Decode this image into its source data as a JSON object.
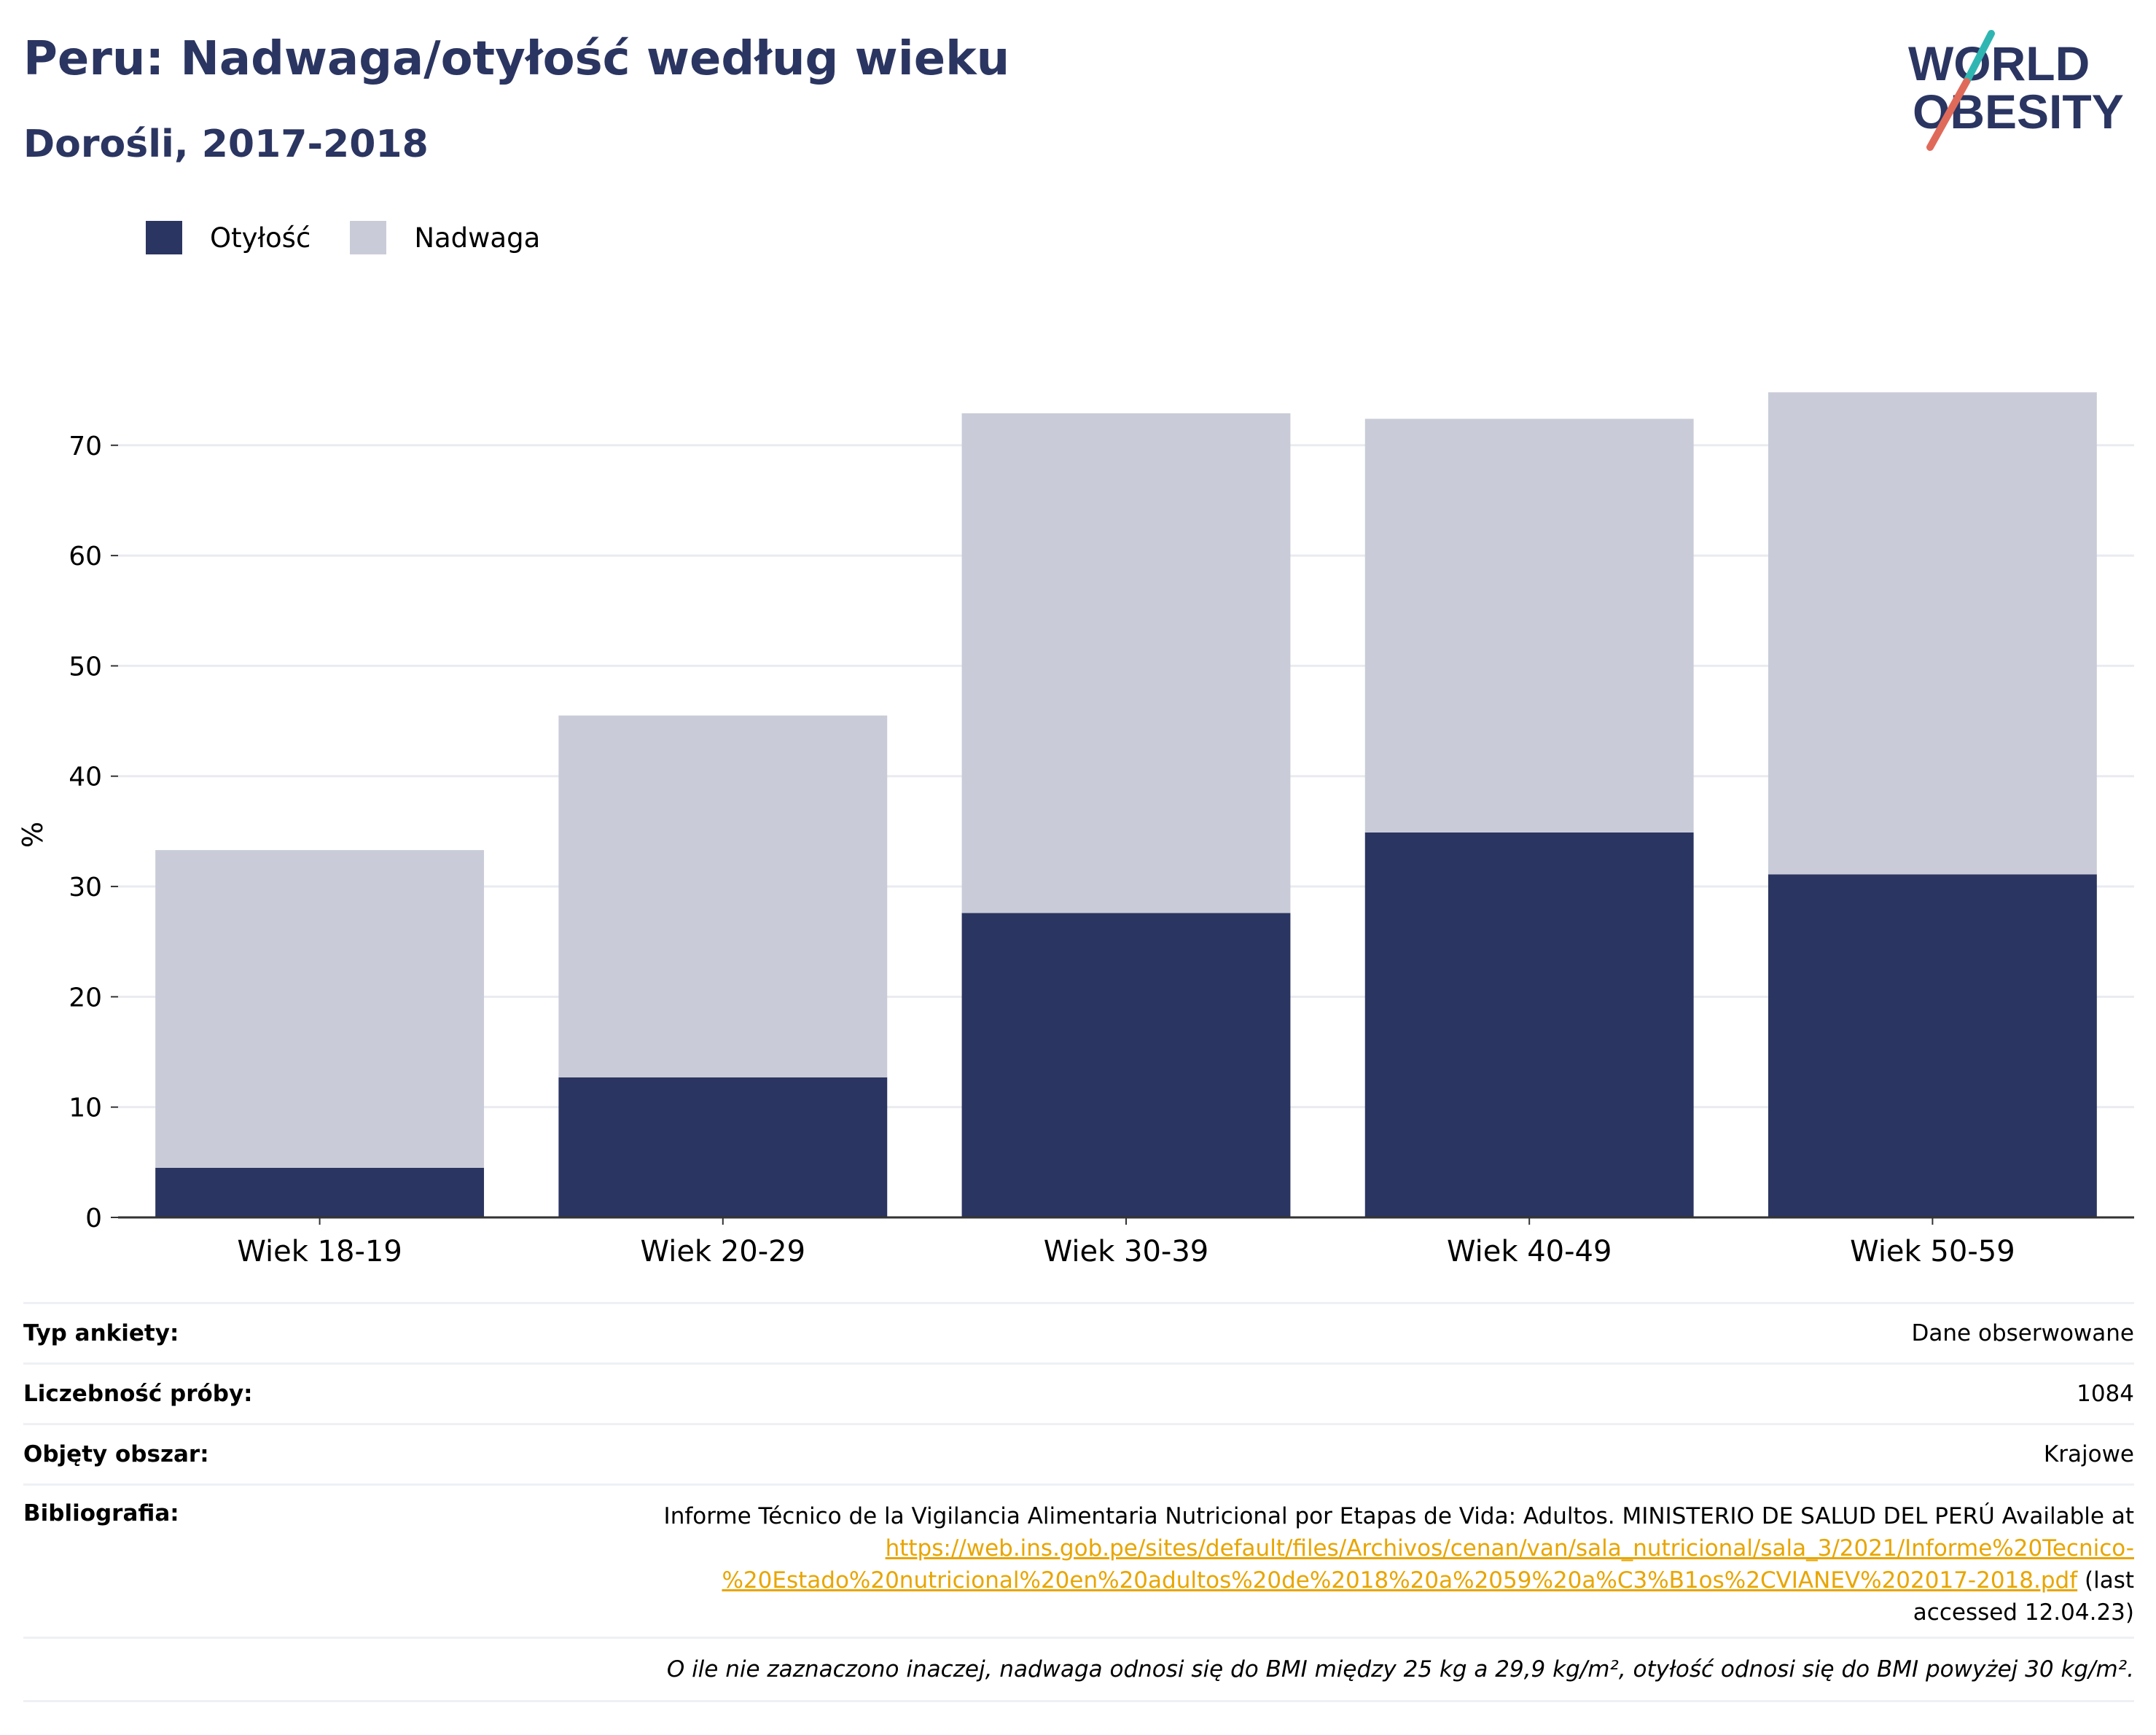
{
  "header": {
    "title": "Peru: Nadwaga/otyłość według wieku",
    "subtitle": "Dorośli, 2017-2018"
  },
  "logo": {
    "line1": "WORLD",
    "line2": "OBESITY",
    "accent_teal": "#2fb6b3",
    "accent_red": "#e06a5a"
  },
  "colors": {
    "obesity": "#2b3561",
    "overweight": "#c9ccd8",
    "title": "#2b3561",
    "link": "#e8a500"
  },
  "chart_data": {
    "type": "bar",
    "stacked": true,
    "categories": [
      "Wiek 18-19",
      "Wiek 20-29",
      "Wiek 30-39",
      "Wiek 40-49",
      "Wiek 50-59"
    ],
    "series": [
      {
        "name": "Otyłość",
        "values": [
          4.5,
          12.7,
          27.6,
          34.9,
          31.1
        ]
      },
      {
        "name": "Nadwaga",
        "values": [
          28.8,
          32.8,
          45.3,
          37.5,
          43.7
        ]
      }
    ],
    "ylabel": "%",
    "ylim": [
      0,
      76
    ],
    "yticks": [
      0,
      10,
      20,
      30,
      40,
      50,
      60,
      70
    ],
    "grid": true,
    "legend": "top-left"
  },
  "info": {
    "survey_type_label": "Typ ankiety:",
    "survey_type_value": "Dane obserwowane",
    "sample_label": "Liczebność próby:",
    "sample_value": "1084",
    "area_label": "Objęty obszar:",
    "area_value": "Krajowe",
    "biblio_label": "Bibliografia:",
    "biblio_text": "Informe Técnico de la Vigilancia Alimentaria Nutricional por Etapas de Vida: Adultos. MINISTERIO DE SALUD DEL PERÚ Available at",
    "biblio_link_1": "https://web.ins.gob.pe/sites/default/files/Archivos/cenan/van/sala_nutricional/sala_3/2021/Informe%20Tecnico-",
    "biblio_link_2": "%20Estado%20nutricional%20en%20adultos%20de%2018%20a%2059%20a%C3%B1os%2CVIANEV%202017-2018.pdf",
    "biblio_suffix_1": "(last",
    "biblio_suffix_2": "accessed 12.04.23)",
    "footnote": "O ile nie zaznaczono inaczej, nadwaga odnosi się do BMI między 25 kg a 29,9 kg/m², otyłość odnosi się do BMI powyżej 30 kg/m²."
  }
}
